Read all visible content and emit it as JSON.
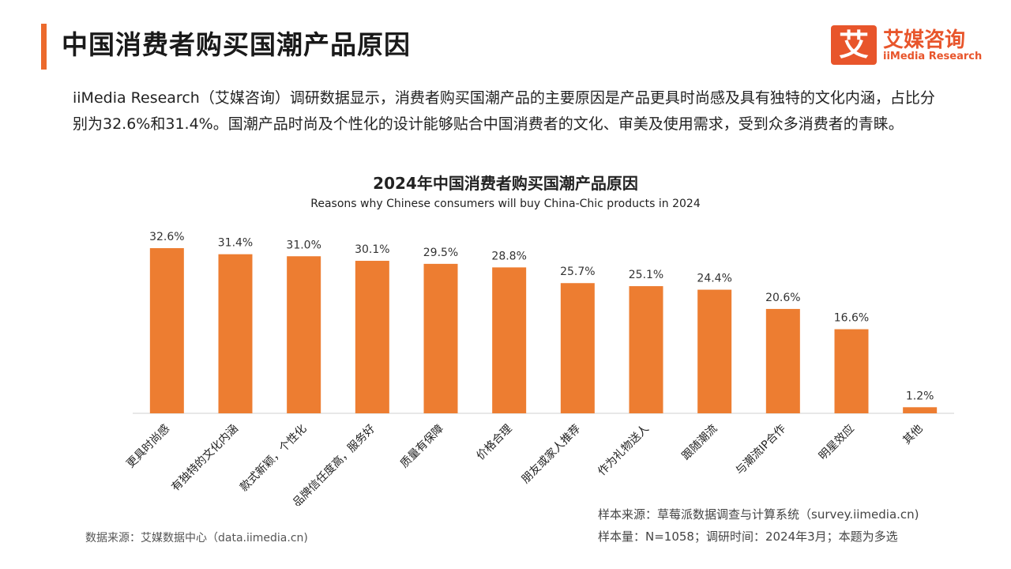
{
  "page": {
    "title": "中国消费者购买国潮产品原因",
    "intro": "iiMedia Research（艾媒咨询）调研数据显示，消费者购买国潮产品的主要原因是产品更具时尚感及具有独特的文化内涵，占比分别为32.6%和31.4%。国潮产品时尚及个性化的设计能够贴合中国消费者的文化、审美及使用需求，受到众多消费者的青睐。"
  },
  "logo": {
    "mark": "艾",
    "name_cn": "艾媒咨询",
    "name_en": "iiMedia Research"
  },
  "footer": {
    "data_source": "数据来源：艾媒数据中心（data.iimedia.cn)",
    "sample_source": "样本来源：草莓派数据调查与计算系统（survey.iimedia.cn)",
    "sample_info": "样本量：N=1058；调研时间：2024年3月；本题为多选"
  },
  "chart_data": {
    "type": "bar",
    "title": "2024年中国消费者购买国潮产品原因",
    "subtitle": "Reasons why Chinese consumers will buy China-Chic products in 2024",
    "categories": [
      "更具时尚感",
      "有独特的文化内涵",
      "款式新颖，个性化",
      "品牌信任度高，服务好",
      "质量有保障",
      "价格合理",
      "朋友或家人推荐",
      "作为礼物送人",
      "跟随潮流",
      "与潮流IP合作",
      "明星效应",
      "其他"
    ],
    "values": [
      32.6,
      31.4,
      31.0,
      30.1,
      29.5,
      28.8,
      25.7,
      25.1,
      24.4,
      20.6,
      16.6,
      1.2
    ],
    "value_labels": [
      "32.6%",
      "31.4%",
      "31.0%",
      "30.1%",
      "29.5%",
      "28.8%",
      "25.7%",
      "25.1%",
      "24.4%",
      "20.6%",
      "16.6%",
      "1.2%"
    ],
    "unit": "%",
    "bar_color": "#ed7d31",
    "axis_color": "#d0d0d0",
    "ylim": [
      0,
      32.6
    ],
    "grid": false,
    "legend": "none"
  }
}
